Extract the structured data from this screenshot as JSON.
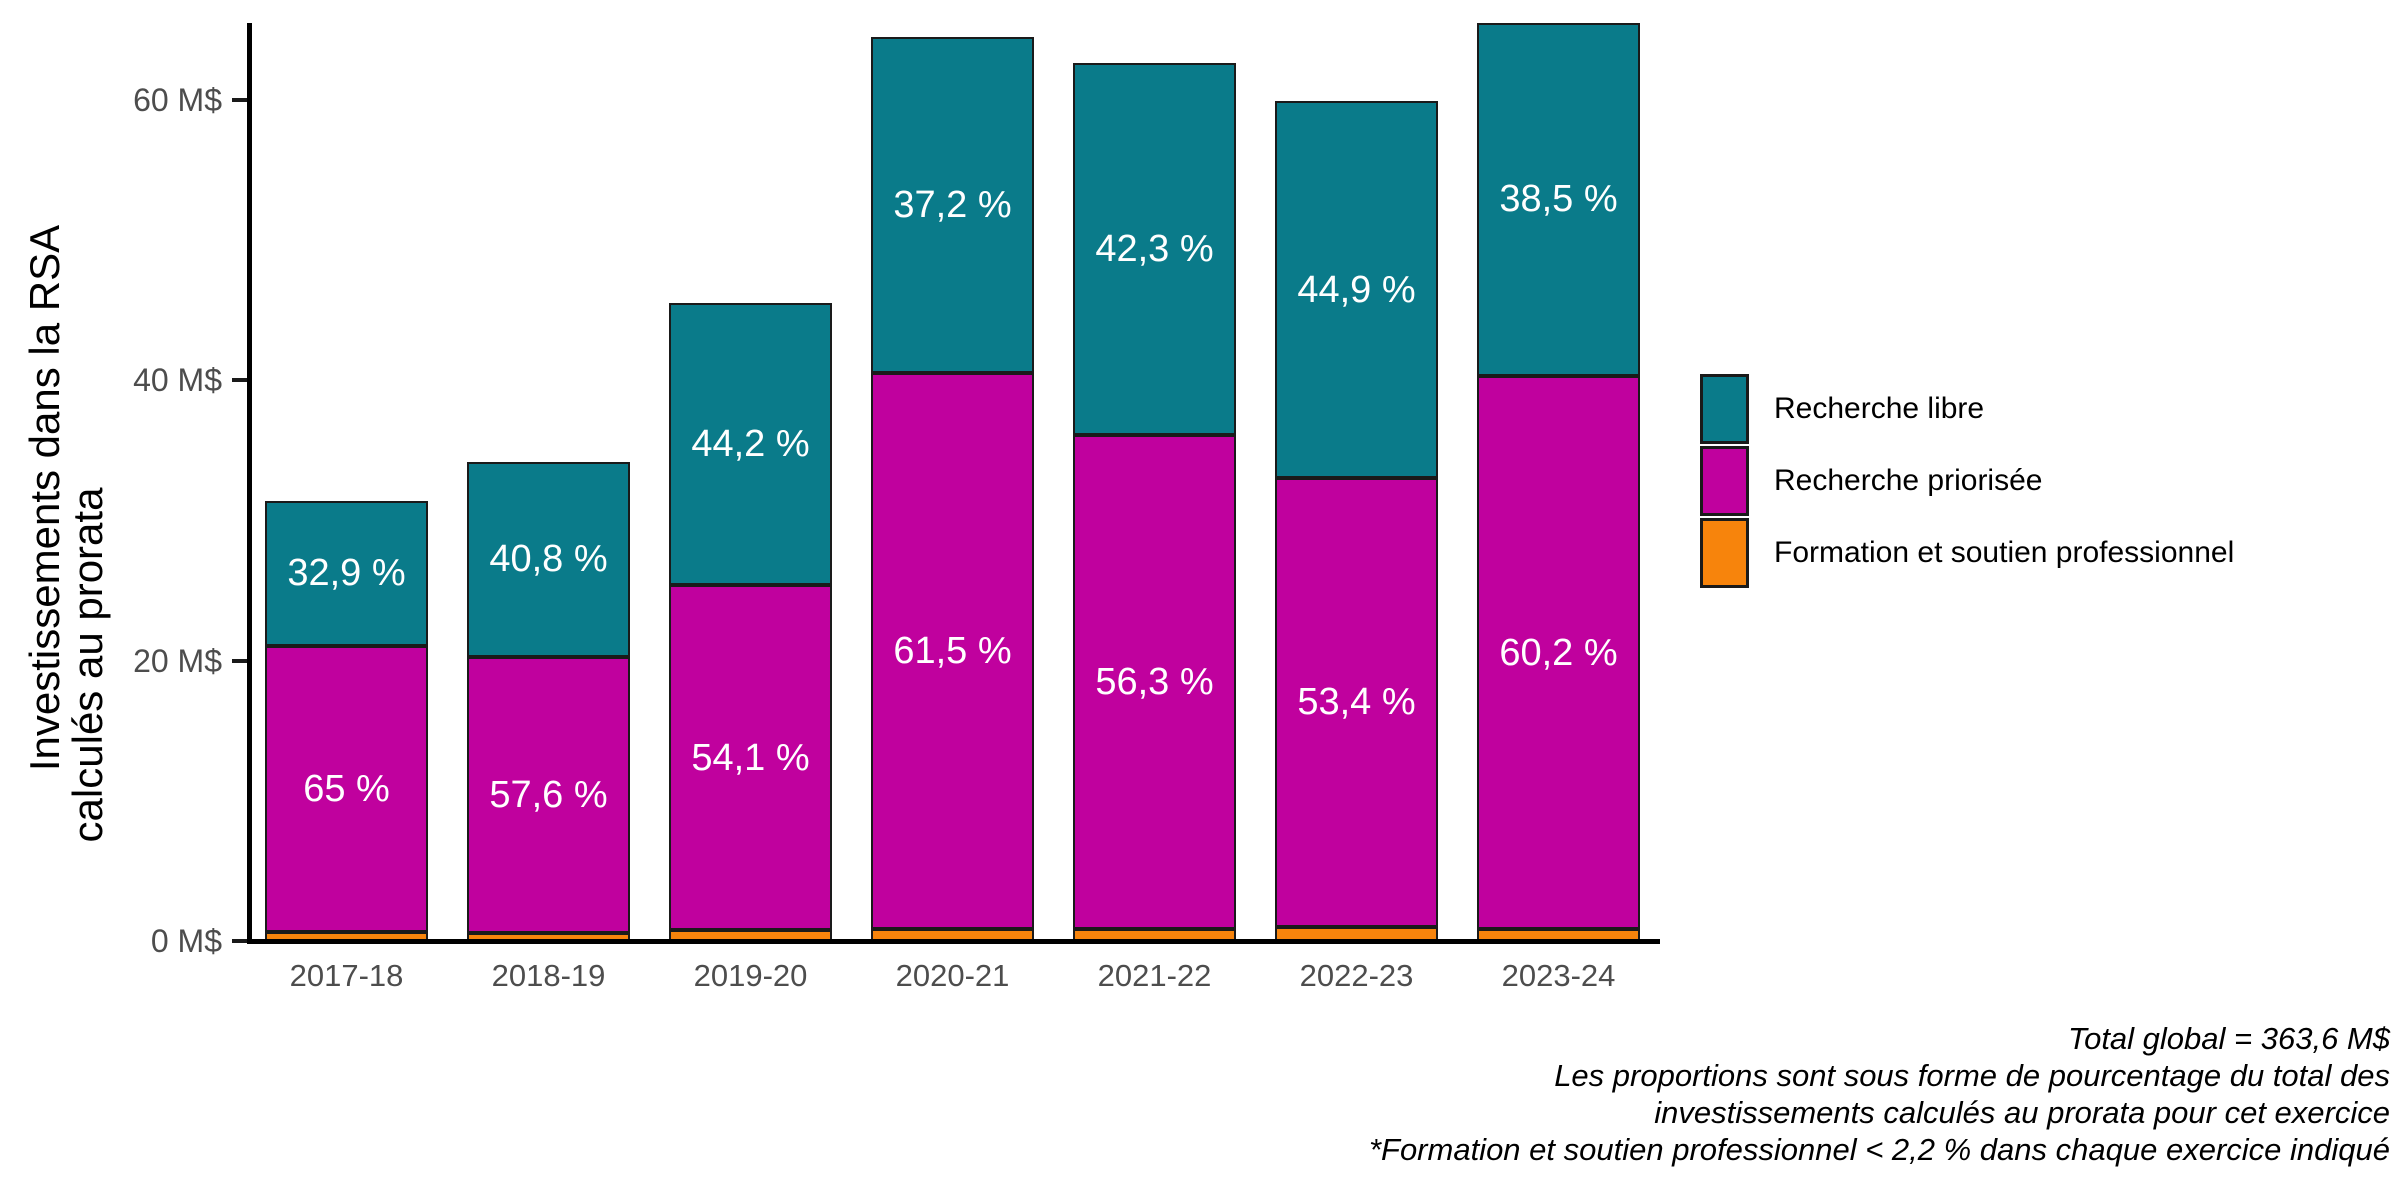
{
  "chart_data": {
    "type": "bar",
    "stacked": true,
    "orientation": "vertical",
    "grid": false,
    "legend_position": "right",
    "label_color": "#ffffff",
    "categories": [
      "2017-18",
      "2018-19",
      "2019-20",
      "2020-21",
      "2021-22",
      "2022-23",
      "2023-24"
    ],
    "totals_millions": [
      31.4,
      34.2,
      45.5,
      64.5,
      62.6,
      59.9,
      65.5
    ],
    "series": [
      {
        "key": "recherche-libre",
        "name": "Recherche libre",
        "color": "#0a7b8a",
        "pct": [
          32.9,
          40.8,
          44.2,
          37.2,
          42.3,
          44.9,
          38.5
        ],
        "labels": [
          "32,9 %",
          "40,8 %",
          "44,2 %",
          "37,2 %",
          "42,3 %",
          "44,9 %",
          "38,5 %"
        ]
      },
      {
        "key": "recherche-priorisee",
        "name": "Recherche priorisée",
        "color": "#c0019e",
        "pct": [
          65.0,
          57.6,
          54.1,
          61.5,
          56.3,
          53.4,
          60.2
        ],
        "labels": [
          "65 %",
          "57,6 %",
          "54,1 %",
          "61,5 %",
          "56,3 %",
          "53,4 %",
          "60,2 %"
        ]
      },
      {
        "key": "formation-et-soutien-professionnel",
        "name": "Formation et soutien professionnel",
        "color": "#f7840c",
        "pct": [
          2.1,
          1.6,
          1.7,
          1.3,
          1.4,
          1.7,
          1.3
        ],
        "labels": [
          "",
          "",
          "",
          "",
          "",
          "",
          ""
        ]
      }
    ],
    "y_axis": {
      "title_line1": "Investissements dans la RSA",
      "title_line2": "calculés au prorata",
      "range": [
        0,
        66
      ],
      "ticks": [
        {
          "value": 0,
          "label": "0 M$"
        },
        {
          "value": 20,
          "label": "20 M$"
        },
        {
          "value": 40,
          "label": "40 M$"
        },
        {
          "value": 60,
          "label": "60 M$"
        }
      ]
    }
  },
  "footnotes": {
    "lines": [
      "Total global = 363,6 M$",
      "Les proportions sont sous forme de pourcentage du total des",
      "investissements calculés au prorata pour cet exercice",
      "*Formation et soutien professionnel < 2,2 % dans chaque exercice indiqué"
    ]
  }
}
